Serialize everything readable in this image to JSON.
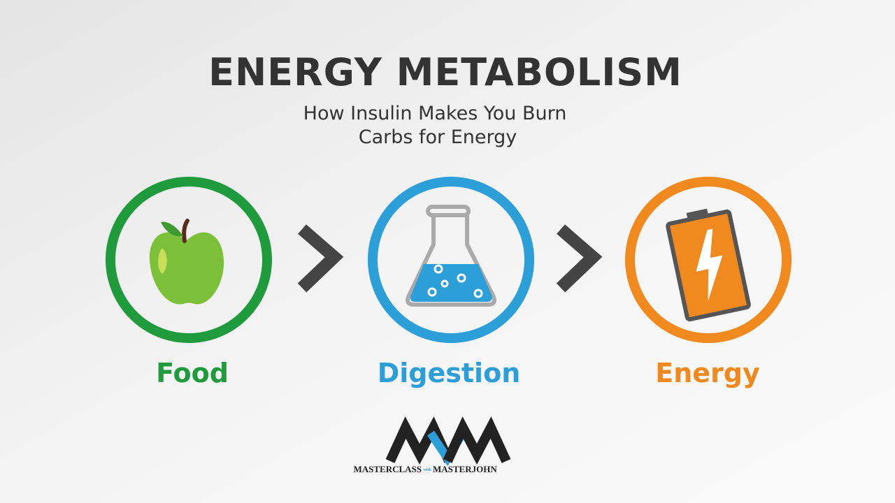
{
  "header": {
    "title": "ENERGY METABOLISM",
    "subtitle_lines": [
      "How Insulin Makes You Burn",
      "Carbs for Energy"
    ]
  },
  "steps": [
    {
      "label": "Food"
    },
    {
      "label": "Digestion"
    },
    {
      "label": "Energy"
    }
  ],
  "logo": {
    "left": "MASTERCLASS",
    "middle": "with",
    "right": "MASTERJOHN"
  }
}
